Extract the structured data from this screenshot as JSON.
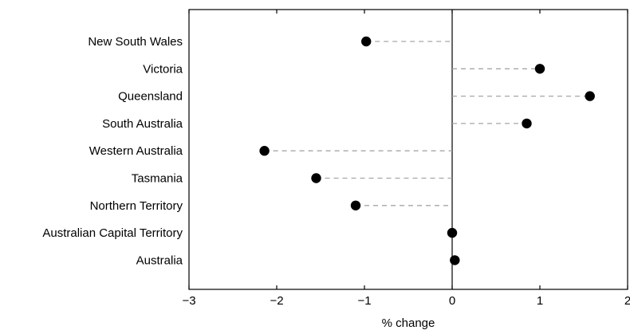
{
  "chart_data": {
    "type": "scatter",
    "variant": "dot-plot",
    "categories": [
      "New South Wales",
      "Victoria",
      "Queensland",
      "South Australia",
      "Western Australia",
      "Tasmania",
      "Northern Territory",
      "Australian Capital Territory",
      "Australia"
    ],
    "values": [
      -0.98,
      1.0,
      1.57,
      0.85,
      -2.14,
      -1.55,
      -1.1,
      0.0,
      0.03
    ],
    "xlabel": "% change",
    "ylabel": "",
    "xlim": [
      -3,
      2
    ],
    "xticks": [
      -3,
      -2,
      -1,
      0,
      1,
      2
    ],
    "xtick_labels": [
      "−3",
      "−2",
      "−1",
      "0",
      "1",
      "2"
    ],
    "grid": false,
    "legend": "none",
    "colors": {
      "marker": "#000000",
      "connector": "#a6a6a6",
      "axis": "#000000"
    }
  }
}
